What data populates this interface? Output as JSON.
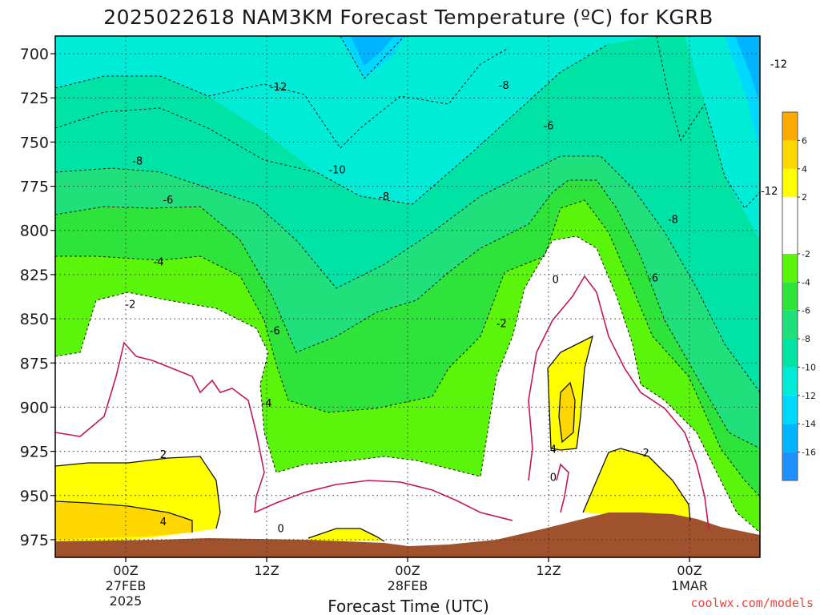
{
  "chart_data": {
    "type": "heatmap",
    "title": "2025022618 NAM3KM Forecast Temperature (ºC) for KGRB",
    "xlabel": "Forecast Time (UTC)",
    "ylabel": "",
    "y_axis": {
      "inverted": true,
      "ticks": [
        700,
        725,
        750,
        775,
        800,
        825,
        850,
        875,
        900,
        925,
        950,
        975
      ],
      "tick_labels": [
        "700",
        "725",
        "750",
        "775",
        "800",
        "825",
        "850",
        "875",
        "900",
        "925",
        "950",
        "975"
      ],
      "range": [
        690,
        985
      ]
    },
    "x_axis": {
      "range": [
        "2025-02-26T18Z",
        "2025-03-01T06Z"
      ],
      "ticks": [
        {
          "time": "2025-02-27T00Z",
          "label1": "00Z",
          "label2": "27FEB",
          "label3": "2025"
        },
        {
          "time": "2025-02-27T12Z",
          "label1": "12Z",
          "label2": "",
          "label3": ""
        },
        {
          "time": "2025-02-28T00Z",
          "label1": "00Z",
          "label2": "28FEB",
          "label3": ""
        },
        {
          "time": "2025-02-28T12Z",
          "label1": "12Z",
          "label2": "",
          "label3": ""
        },
        {
          "time": "2025-03-01T00Z",
          "label1": "00Z",
          "label2": "1MAR",
          "label3": ""
        }
      ]
    },
    "grid": true,
    "colorbar": {
      "placement": "right",
      "levels": [
        {
          "from": -18,
          "to": -16,
          "color": "#1e90ff"
        },
        {
          "from": -16,
          "to": -14,
          "color": "#00b4ff"
        },
        {
          "from": -14,
          "to": -12,
          "color": "#00d8ff"
        },
        {
          "from": -12,
          "to": -10,
          "color": "#00ecd6"
        },
        {
          "from": -10,
          "to": -8,
          "color": "#00e3a4"
        },
        {
          "from": -8,
          "to": -6,
          "color": "#1fe07a"
        },
        {
          "from": -6,
          "to": -4,
          "color": "#2ee33a"
        },
        {
          "from": -4,
          "to": -2,
          "color": "#5af50a"
        },
        {
          "from": -2,
          "to": 2,
          "color": "#ffffff"
        },
        {
          "from": 2,
          "to": 4,
          "color": "#ffff00"
        },
        {
          "from": 4,
          "to": 6,
          "color": "#ffd700"
        },
        {
          "from": 6,
          "to": 8,
          "color": "#ffaa00"
        }
      ],
      "tick_labels": [
        "6",
        "4",
        "2",
        "-2",
        "-4",
        "-6",
        "-8",
        "-10",
        "-12",
        "-14",
        "-16"
      ]
    },
    "contour_labels": [
      {
        "text": "-12",
        "time_h": 19.0,
        "p": 719
      },
      {
        "text": "-8",
        "time_h": 7.0,
        "p": 761
      },
      {
        "text": "-6",
        "time_h": 9.6,
        "p": 783
      },
      {
        "text": "-4",
        "time_h": 8.8,
        "p": 818
      },
      {
        "text": "-2",
        "time_h": 6.4,
        "p": 842
      },
      {
        "text": "-10",
        "time_h": 24.0,
        "p": 766
      },
      {
        "text": "-8",
        "time_h": 28.0,
        "p": 781
      },
      {
        "text": "-6",
        "time_h": 18.7,
        "p": 857
      },
      {
        "text": "-4",
        "time_h": 18.0,
        "p": 898
      },
      {
        "text": "-8",
        "time_h": 38.2,
        "p": 718
      },
      {
        "text": "-6",
        "time_h": 42.0,
        "p": 741
      },
      {
        "text": "-2",
        "time_h": 38.0,
        "p": 853
      },
      {
        "text": "0",
        "time_h": 42.6,
        "p": 828
      },
      {
        "text": "4",
        "time_h": 42.4,
        "p": 924
      },
      {
        "text": "0",
        "time_h": 42.4,
        "p": 940
      },
      {
        "text": "2",
        "time_h": 50.3,
        "p": 926
      },
      {
        "text": "2",
        "time_h": 9.2,
        "p": 927
      },
      {
        "text": "4",
        "time_h": 9.2,
        "p": 965
      },
      {
        "text": "0",
        "time_h": 19.2,
        "p": 969
      },
      {
        "text": "-8",
        "time_h": 52.6,
        "p": 794
      },
      {
        "text": "-6",
        "time_h": 50.9,
        "p": 827
      },
      {
        "text": "-12",
        "time_h": 60.8,
        "p": 778
      },
      {
        "text": "-12",
        "time_h": 61.6,
        "p": 706
      }
    ]
  },
  "credit": "coolwx.com/models"
}
